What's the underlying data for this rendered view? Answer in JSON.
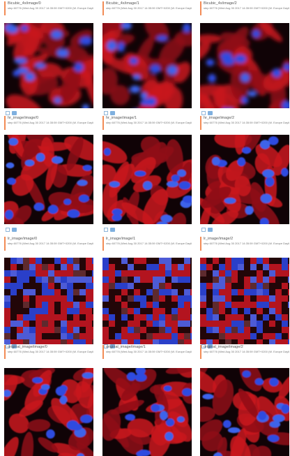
{
  "subtitle_text": "step 60776 (Wed Aug 30 2017 14:35:59 GMT+0200 (W. Europe Daylight Time))",
  "rows": [
    {
      "titles": [
        "Bicubic_4x/image/0",
        "Bicubic_4x/image/1",
        "Bicubic_4x/image/2"
      ],
      "style": "soft"
    },
    {
      "titles": [
        "hr_image/image/0",
        "hr_image/image/1",
        "hr_image/image/2"
      ],
      "style": "sharp"
    },
    {
      "titles": [
        "lr_image/image/0",
        "lr_image/image/1",
        "lr_image/image/2"
      ],
      "style": "pixel"
    },
    {
      "titles": [
        "original_image/image/0",
        "original_image/image/1",
        "original_image/image/2"
      ],
      "style": "sharp"
    }
  ],
  "icons": [
    "expand-icon",
    "image-icon"
  ]
}
